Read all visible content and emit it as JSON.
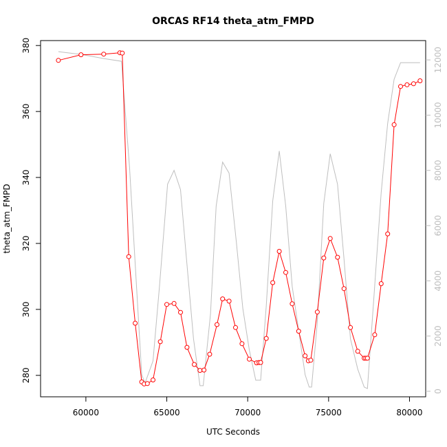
{
  "chart_data": {
    "type": "line",
    "title": "ORCAS RF14 theta_atm_FMPD",
    "xlabel": "UTC Seconds",
    "ylabel": "theta_atm_FMPD",
    "xlim": [
      57200,
      81000
    ],
    "ylim": [
      273.5,
      381.5
    ],
    "y2lim": [
      -200,
      12700
    ],
    "x_ticks": [
      60000,
      65000,
      70000,
      75000,
      80000
    ],
    "y_ticks": [
      280,
      300,
      320,
      340,
      360,
      380
    ],
    "y2_ticks": [
      0,
      2000,
      4000,
      6000,
      8000,
      10000,
      12000
    ],
    "grid": false,
    "series": [
      {
        "color": "#ff0000",
        "axis": "left",
        "style": "line-with-open-circles",
        "x": [
          58300,
          59700,
          61100,
          62100,
          62250,
          62650,
          63050,
          63450,
          63600,
          63800,
          64150,
          64600,
          65000,
          65450,
          65850,
          66250,
          66700,
          67050,
          67300,
          67650,
          68100,
          68450,
          68850,
          69250,
          69650,
          70100,
          70550,
          70700,
          70800,
          71150,
          71550,
          71950,
          72350,
          72750,
          73150,
          73550,
          73750,
          73900,
          74300,
          74700,
          75100,
          75550,
          75950,
          76350,
          76800,
          77200,
          77300,
          77400,
          77850,
          78250,
          78650,
          79050,
          79450,
          79850,
          80250,
          80650
        ],
        "y": [
          375.5,
          377.2,
          377.4,
          377.8,
          377.7,
          316,
          295.8,
          278,
          277.4,
          277.5,
          278.6,
          290.2,
          301.5,
          301.8,
          299.1,
          288.5,
          283.3,
          281.5,
          281.6,
          286.4,
          295.4,
          303.2,
          302.5,
          294.5,
          289.6,
          284.9,
          283.8,
          283.9,
          283.9,
          291.2,
          308.1,
          317.6,
          311.2,
          301.7,
          293.4,
          285.9,
          284.4,
          284.6,
          299.2,
          315.6,
          321.5,
          315.8,
          306.3,
          294.5,
          287.3,
          285.2,
          285.2,
          285.2,
          292.3,
          307.8,
          322.9,
          356,
          367.6,
          368.1,
          368.4,
          369.3
        ]
      },
      {
        "color": "#bebebe",
        "axis": "right",
        "style": "line",
        "x": [
          58300,
          59700,
          61100,
          62200,
          62700,
          63100,
          63450,
          63650,
          63750,
          64150,
          64550,
          65050,
          65450,
          65850,
          66200,
          66650,
          67050,
          67250,
          67700,
          68050,
          68450,
          68850,
          69300,
          69700,
          70100,
          70500,
          70800,
          71150,
          71550,
          71950,
          72350,
          72750,
          73150,
          73550,
          73800,
          73950,
          74300,
          74700,
          75100,
          75550,
          75950,
          76350,
          76800,
          77200,
          77400,
          77800,
          78250,
          78650,
          79050,
          79450,
          79850,
          80250,
          80650
        ],
        "y": [
          12300,
          12200,
          12050,
          11950,
          8100,
          4100,
          600,
          300,
          450,
          1100,
          3800,
          7500,
          8000,
          7300,
          4900,
          1900,
          200,
          200,
          2800,
          6700,
          8300,
          7900,
          5400,
          3000,
          1500,
          400,
          400,
          3100,
          6900,
          8700,
          6700,
          3800,
          2200,
          600,
          150,
          150,
          2500,
          6800,
          8600,
          7500,
          4800,
          1900,
          800,
          150,
          100,
          3400,
          7200,
          9700,
          11300,
          11900,
          11900,
          11900,
          11900
        ]
      }
    ]
  }
}
